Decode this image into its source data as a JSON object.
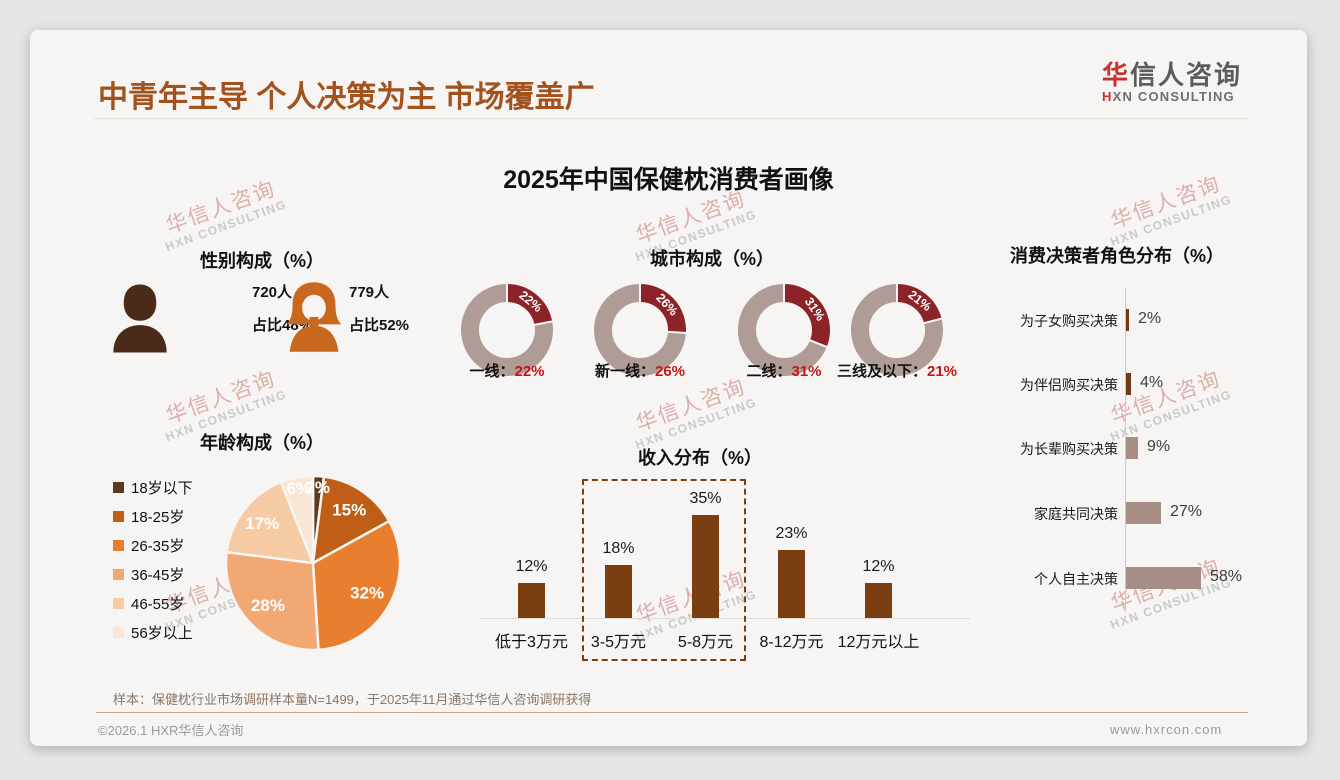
{
  "page": {
    "header": {
      "title": "中青年主导 个人决策为主 市场覆盖广"
    },
    "logo": {
      "zh_accent": "华",
      "zh_rest": "信人咨询",
      "en_accent": "H",
      "en_rest": "XN CONSULTING"
    },
    "main_title": "2025年中国保健枕消费者画像",
    "watermark": {
      "zh": "华信人咨询",
      "en": "HXN CONSULTING"
    },
    "footnote": "样本：保健枕行业市场调研样本量N=1499，于2025年11月通过华信人咨询调研获得",
    "footer": {
      "left": "©2026.1 HXR华信人咨询",
      "right": "www.hxrcon.com"
    }
  },
  "chart_data": [
    {
      "id": "gender",
      "type": "pictogram",
      "title": "性别构成（%）",
      "items": [
        {
          "gender": "男性",
          "count": 720,
          "share_pct": 48,
          "count_label": "720人",
          "share_label": "占比48%",
          "color": "#4a2b19"
        },
        {
          "gender": "女性",
          "count": 779,
          "share_pct": 52,
          "count_label": "779人",
          "share_label": "占比52%",
          "color": "#c8681e"
        }
      ]
    },
    {
      "id": "city",
      "type": "pie",
      "subtype": "donut-small-multiples",
      "title": "城市构成（%）",
      "categories": [
        "一线",
        "新一线",
        "二线",
        "三线及以下"
      ],
      "values": [
        22,
        26,
        31,
        21
      ],
      "colors": {
        "highlight": "#8b2328",
        "rest": "#af9c96",
        "inner_label": "#ffffff",
        "value_text": "#c81414"
      }
    },
    {
      "id": "decision",
      "type": "bar",
      "orientation": "horizontal",
      "title": "消费决策者角色分布（%）",
      "categories": [
        "为子女购买决策",
        "为伴侣购买决策",
        "为长辈购买决策",
        "家庭共同决策",
        "个人自主决策"
      ],
      "values": [
        2,
        4,
        9,
        27,
        58
      ],
      "bar_colors": [
        "#6e3a17",
        "#6e3a17",
        "#a68d85",
        "#a68d85",
        "#a68d85"
      ],
      "xlim": [
        0,
        60
      ],
      "grid": false
    },
    {
      "id": "age",
      "type": "pie",
      "title": "年龄构成（%）",
      "categories": [
        "18岁以下",
        "18-25岁",
        "26-35岁",
        "36-45岁",
        "46-55岁",
        "56岁以上"
      ],
      "values": [
        2,
        15,
        32,
        28,
        17,
        6
      ],
      "colors": [
        "#5e3a1c",
        "#c05e17",
        "#e87e2e",
        "#f2a873",
        "#f6cba4",
        "#fae6d5"
      ],
      "label_color": "#ffffff",
      "legend_position": "left",
      "start_angle_deg": 0,
      "direction": "clockwise"
    },
    {
      "id": "income",
      "type": "bar",
      "orientation": "vertical",
      "title": "收入分布（%）",
      "categories": [
        "低于3万元",
        "3-5万元",
        "5-8万元",
        "8-12万元",
        "12万元以上"
      ],
      "values": [
        12,
        18,
        35,
        23,
        12
      ],
      "bar_color": "#7a3e12",
      "ylim": [
        0,
        40
      ],
      "highlight_box_categories": [
        "3-5万元",
        "5-8万元"
      ],
      "grid": false
    }
  ]
}
